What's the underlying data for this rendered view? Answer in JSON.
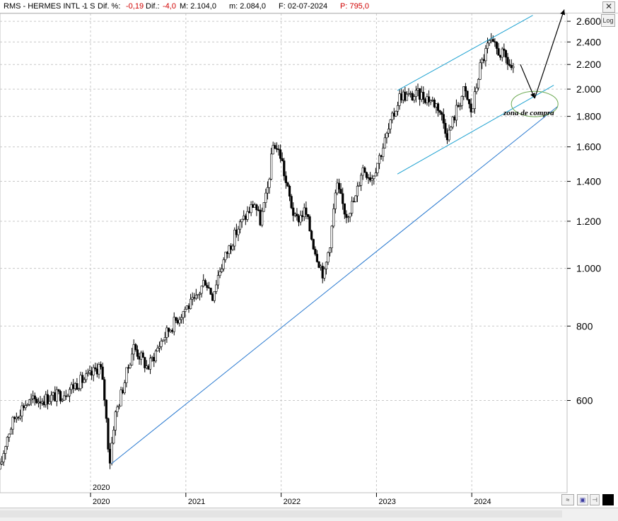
{
  "header": {
    "symbol": "RMS - HERMES INTL -",
    "period": "1 S",
    "dif_pct_label": "Dif. %:",
    "dif_pct_value": "-0,19",
    "dif_label": "Dif.:",
    "dif_value": "-4,0",
    "max_label": "M: 2.104,0",
    "min_label": "m: 2.084,0",
    "date_label": "F: 02-07-2024",
    "price_label": "P: 795,0"
  },
  "controls": {
    "log_label": "Log"
  },
  "colors": {
    "candles": "#000000",
    "channel": "#1aa0d0",
    "support": "#2a7ad0",
    "zone": "#6aa84f",
    "grid": "#c8c8c8",
    "price_label": "#d00000"
  },
  "icons": [
    "close-icon",
    "minimize-icon",
    "save-icon",
    "pin-icon",
    "fill-icon"
  ],
  "annotation": {
    "text": "zona de compra"
  },
  "chart_data": {
    "type": "candlestick",
    "scale": "log",
    "ylim": [
      420,
      2680
    ],
    "y_ticks": [
      600,
      800,
      "1.000",
      "1.200",
      "1.400",
      "1.600",
      "1.800",
      "2.000",
      "2.200",
      "2.400",
      "2.600"
    ],
    "y_tick_values": [
      600,
      800,
      1000,
      1200,
      1400,
      1600,
      1800,
      2000,
      2200,
      2400,
      2600
    ],
    "x_labels": [
      "2020",
      "2021",
      "2022",
      "2023",
      "2024"
    ],
    "x_label_years": [
      2020.0,
      2021.0,
      2022.0,
      2023.0,
      2024.0
    ],
    "top_marker": "2020",
    "x_range": [
      2019.05,
      2025.0
    ],
    "price_path": [
      [
        2019.05,
        460
      ],
      [
        2019.12,
        520
      ],
      [
        2019.2,
        560
      ],
      [
        2019.3,
        590
      ],
      [
        2019.4,
        600
      ],
      [
        2019.55,
        605
      ],
      [
        2019.7,
        615
      ],
      [
        2019.85,
        640
      ],
      [
        2020.0,
        660
      ],
      [
        2020.1,
        690
      ],
      [
        2020.15,
        600
      ],
      [
        2020.2,
        470
      ],
      [
        2020.25,
        560
      ],
      [
        2020.35,
        640
      ],
      [
        2020.45,
        740
      ],
      [
        2020.55,
        700
      ],
      [
        2020.6,
        680
      ],
      [
        2020.75,
        760
      ],
      [
        2020.85,
        800
      ],
      [
        2021.0,
        860
      ],
      [
        2021.1,
        880
      ],
      [
        2021.2,
        960
      ],
      [
        2021.28,
        900
      ],
      [
        2021.35,
        990
      ],
      [
        2021.45,
        1080
      ],
      [
        2021.55,
        1170
      ],
      [
        2021.65,
        1240
      ],
      [
        2021.72,
        1290
      ],
      [
        2021.78,
        1200
      ],
      [
        2021.85,
        1330
      ],
      [
        2021.92,
        1630
      ],
      [
        2022.0,
        1540
      ],
      [
        2022.05,
        1390
      ],
      [
        2022.15,
        1200
      ],
      [
        2022.25,
        1250
      ],
      [
        2022.35,
        1080
      ],
      [
        2022.45,
        970
      ],
      [
        2022.52,
        1130
      ],
      [
        2022.58,
        1380
      ],
      [
        2022.68,
        1230
      ],
      [
        2022.78,
        1310
      ],
      [
        2022.85,
        1480
      ],
      [
        2022.95,
        1420
      ],
      [
        2023.05,
        1570
      ],
      [
        2023.15,
        1750
      ],
      [
        2023.25,
        1960
      ],
      [
        2023.35,
        1940
      ],
      [
        2023.45,
        1960
      ],
      [
        2023.55,
        1930
      ],
      [
        2023.65,
        1870
      ],
      [
        2023.75,
        1670
      ],
      [
        2023.85,
        1870
      ],
      [
        2023.92,
        1990
      ],
      [
        2024.0,
        1820
      ],
      [
        2024.08,
        2160
      ],
      [
        2024.18,
        2390
      ],
      [
        2024.25,
        2340
      ],
      [
        2024.35,
        2260
      ],
      [
        2024.45,
        2120
      ]
    ],
    "lines": [
      {
        "name": "",
        "from": [
          2020.22,
          470
        ],
        "to": [
          2024.9,
          1870
        ]
      },
      {
        "name": "",
        "from": [
          2023.22,
          1990
        ],
        "to": [
          2024.64,
          2660
        ]
      },
      {
        "name": "",
        "from": [
          2023.22,
          1440
        ],
        "to": [
          2024.86,
          2030
        ]
      }
    ],
    "arrows": [
      {
        "from": [
          2024.51,
          2200
        ],
        "to": [
          2024.66,
          1930
        ]
      },
      {
        "from": [
          2024.66,
          1930
        ],
        "to": [
          2024.97,
          2720
        ]
      }
    ],
    "zone": {
      "center": [
        2024.66,
        1930
      ],
      "label": "zona de compra"
    }
  }
}
